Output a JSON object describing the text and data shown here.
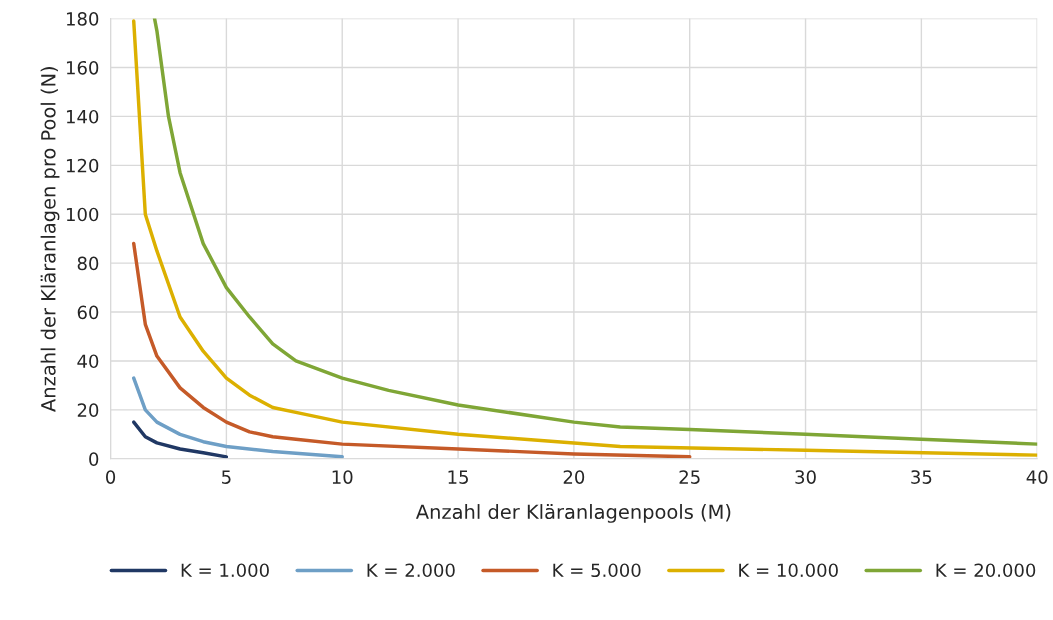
{
  "chart_data": {
    "type": "line",
    "xlabel": "Anzahl der Kläranlagenpools (M)",
    "ylabel": "Anzahl der Kläranlagen pro Pool (N)",
    "xlim": [
      0,
      40
    ],
    "xticks": [
      0,
      5,
      10,
      15,
      20,
      25,
      30,
      35,
      40
    ],
    "ylim": [
      0,
      180
    ],
    "yticks": [
      0,
      20,
      40,
      60,
      80,
      100,
      120,
      140,
      160,
      180
    ],
    "grid": true,
    "legend": "bottom",
    "marker": "none",
    "line_style": "solid",
    "series": [
      {
        "name": "K = 1.000",
        "color": "#203864",
        "x": [
          1,
          1.5,
          2,
          3,
          4,
          5
        ],
        "values": [
          15,
          9,
          6.5,
          4,
          2.5,
          0.8
        ]
      },
      {
        "name": "K = 2.000",
        "color": "#6e9fc6",
        "x": [
          1,
          1.5,
          2,
          3,
          4,
          5,
          7,
          10
        ],
        "values": [
          33,
          20,
          15,
          10,
          7,
          5,
          3,
          0.8
        ]
      },
      {
        "name": "K = 5.000",
        "color": "#c55a28",
        "x": [
          1,
          1.5,
          2,
          3,
          4,
          5,
          6,
          7,
          8,
          10,
          15,
          20,
          25
        ],
        "values": [
          88,
          55,
          42,
          29,
          21,
          15,
          11,
          9,
          8,
          6,
          4,
          2,
          0.8
        ]
      },
      {
        "name": "K = 10.000",
        "color": "#dcb000",
        "x": [
          1,
          1.5,
          2,
          3,
          4,
          5,
          6,
          7,
          8,
          10,
          15,
          20,
          22,
          30,
          40
        ],
        "values": [
          179,
          100,
          85,
          58,
          44,
          33,
          26,
          21,
          19,
          15,
          10,
          6.5,
          5,
          3.5,
          1.5
        ]
      },
      {
        "name": "K = 20.000",
        "color": "#7fa636",
        "x": [
          1.9,
          2,
          2.5,
          3,
          4,
          5,
          6,
          7,
          8,
          10,
          12,
          15,
          20,
          22,
          25,
          30,
          35,
          40
        ],
        "values": [
          180,
          175,
          140,
          117,
          88,
          70,
          58,
          47,
          40,
          33,
          28,
          22,
          15,
          13,
          12,
          10,
          8,
          6
        ]
      }
    ]
  }
}
